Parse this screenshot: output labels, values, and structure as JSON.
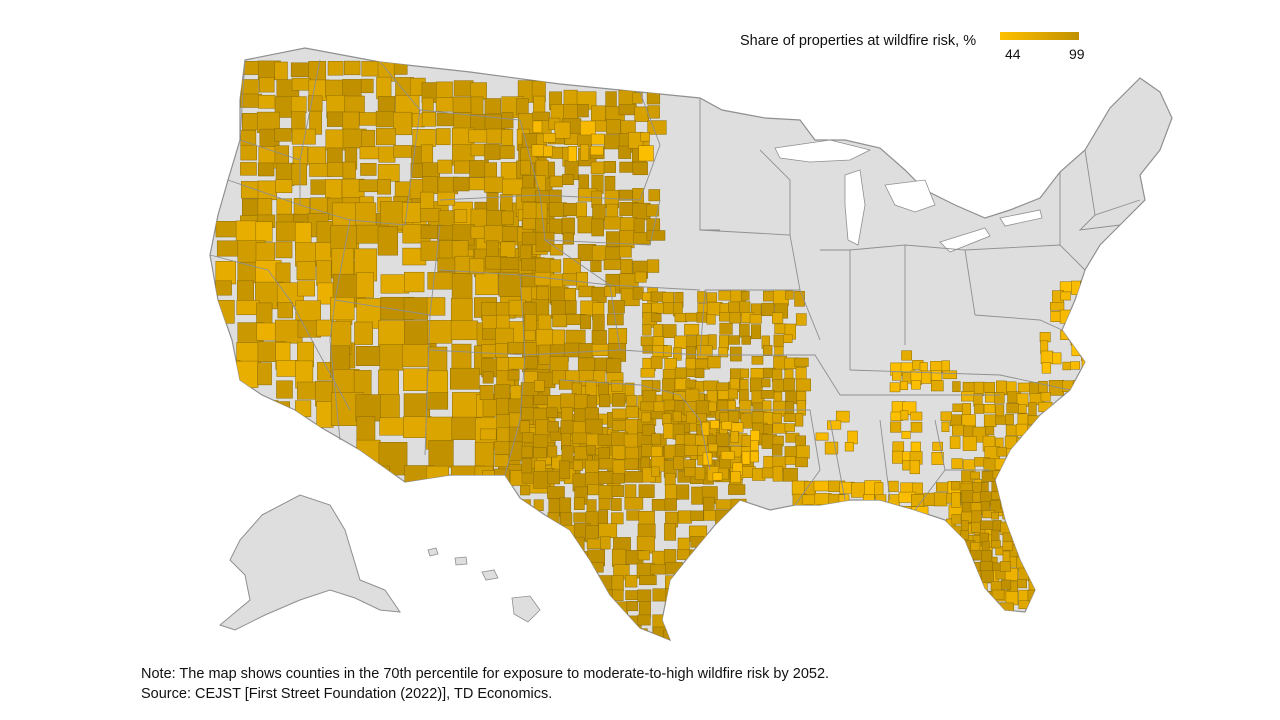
{
  "map": {
    "base_color": "#dedede",
    "border_color": "#8f8f8f",
    "regions": [
      "contiguous-us",
      "alaska",
      "hawaii"
    ]
  },
  "legend": {
    "title": "Share of properties at wildfire risk, %",
    "min_label": "44",
    "max_label": "99",
    "color_low": "#ffc000",
    "color_high": "#c09000",
    "range": [
      44,
      99
    ]
  },
  "notes": {
    "note": "Note: The map shows counties in the 70th percentile for exposure to moderate-to-high wildfire risk by 2052.",
    "source": "Source: CEJST [First Street Foundation (2022)], TD Economics."
  }
}
